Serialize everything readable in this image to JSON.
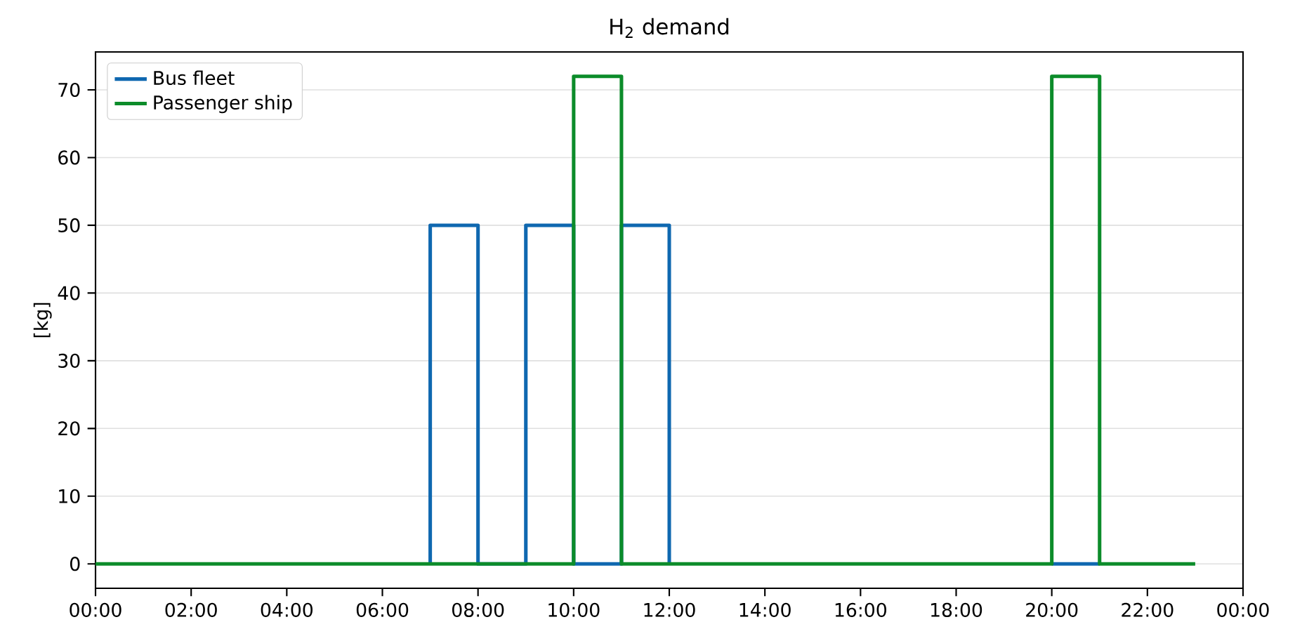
{
  "chart_data": {
    "type": "step",
    "title": "H$_{2}$ demand",
    "ylabel": "[kg]",
    "xlim": [
      0,
      24
    ],
    "ylim": [
      -3.6,
      75.6
    ],
    "xticks": [
      {
        "value": 0,
        "label": "00:00"
      },
      {
        "value": 2,
        "label": "02:00"
      },
      {
        "value": 4,
        "label": "04:00"
      },
      {
        "value": 6,
        "label": "06:00"
      },
      {
        "value": 8,
        "label": "08:00"
      },
      {
        "value": 10,
        "label": "10:00"
      },
      {
        "value": 12,
        "label": "12:00"
      },
      {
        "value": 14,
        "label": "14:00"
      },
      {
        "value": 16,
        "label": "16:00"
      },
      {
        "value": 18,
        "label": "18:00"
      },
      {
        "value": 20,
        "label": "20:00"
      },
      {
        "value": 22,
        "label": "22:00"
      },
      {
        "value": 24,
        "label": "00:00"
      }
    ],
    "yticks": [
      0,
      10,
      20,
      30,
      40,
      50,
      60,
      70
    ],
    "x": [
      0,
      1,
      2,
      3,
      4,
      5,
      6,
      7,
      8,
      9,
      10,
      11,
      12,
      13,
      14,
      15,
      16,
      17,
      18,
      19,
      20,
      21,
      22,
      23
    ],
    "series": [
      {
        "name": "Bus fleet",
        "color": "#0f68b0",
        "x": [
          7,
          7,
          8,
          9,
          10,
          11,
          12,
          null,
          20,
          21
        ],
        "values": [
          0,
          50,
          0,
          50,
          0,
          50,
          0,
          null,
          0,
          0
        ]
      },
      {
        "name": "Passenger ship",
        "color": "#0c8c2a",
        "values": [
          0,
          0,
          0,
          0,
          0,
          0,
          0,
          0,
          0,
          0,
          72,
          0,
          0,
          0,
          0,
          0,
          0,
          0,
          0,
          0,
          72,
          0,
          0,
          0
        ]
      }
    ],
    "grid": "y",
    "legend": "top left",
    "line_style": "solid",
    "marker": "none"
  }
}
